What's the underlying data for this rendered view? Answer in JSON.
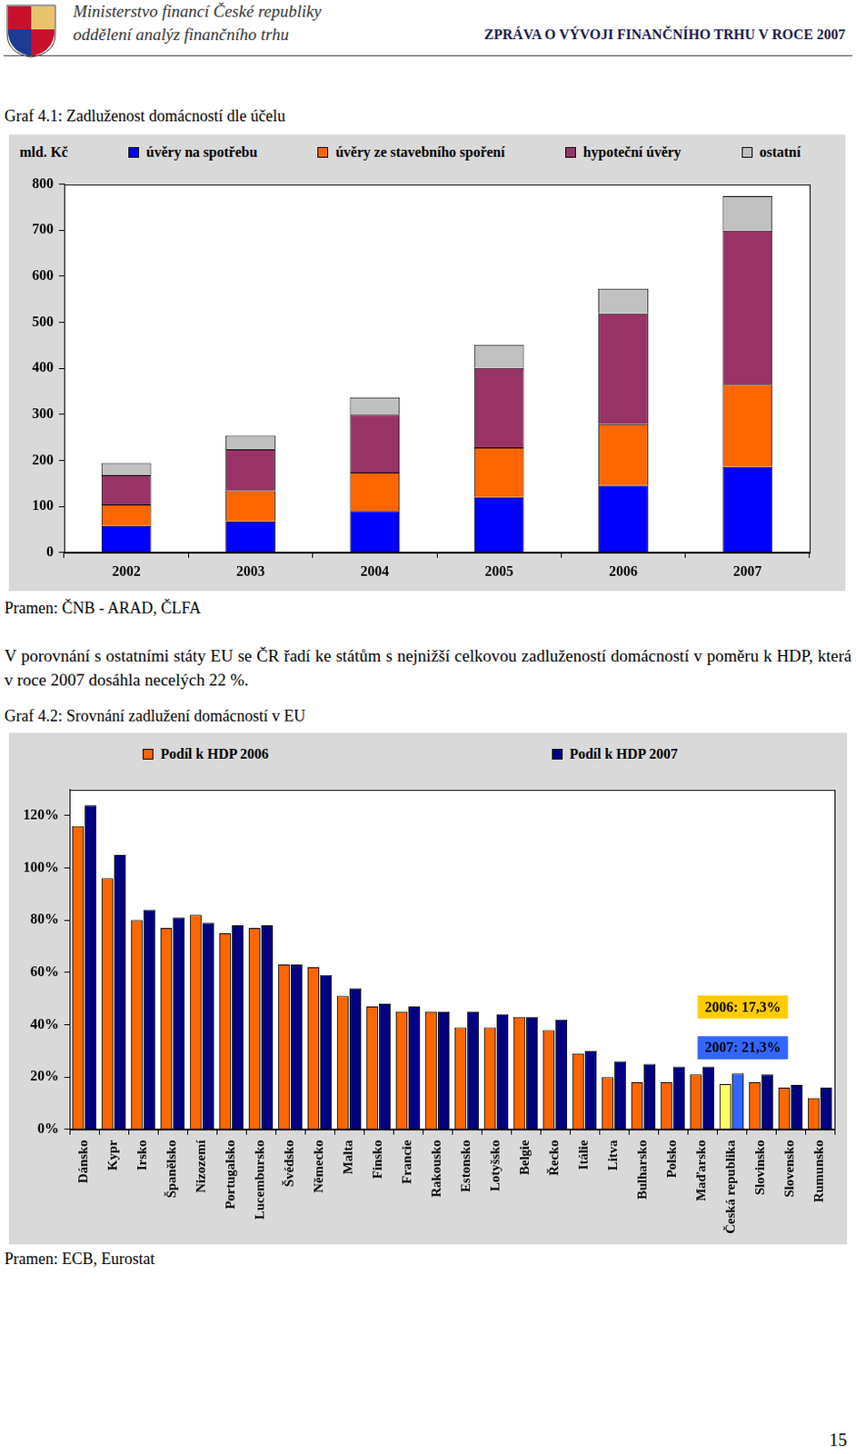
{
  "header": {
    "ministry": "Ministerstvo financí České republiky",
    "department": "oddělení analýz finančního trhu",
    "report": "ZPRÁVA O VÝVOJI FINANČNÍHO TRHU V ROCE 2007"
  },
  "paragraph": "V porovnání s ostatními státy EU se ČR řadí ke státům s nejnižší celkovou zadlužeností domácností v poměru k HDP, která v roce 2007 dosáhla necelých 22 %.",
  "page_number": "15",
  "chart_data": [
    {
      "type": "bar",
      "title": "Graf 4.1: Zadluženost domácností dle účelu",
      "y_label": "mld. Kč",
      "categories": [
        "2002",
        "2003",
        "2004",
        "2005",
        "2006",
        "2007"
      ],
      "series": [
        {
          "name": "úvěry na spotřebu",
          "color": "#0000ff",
          "values": [
            58,
            68,
            90,
            120,
            146,
            186
          ]
        },
        {
          "name": "úvěry ze stavebního spoření",
          "color": "#ff6600",
          "values": [
            46,
            66,
            84,
            108,
            133,
            179
          ]
        },
        {
          "name": "hypoteční úvěry",
          "color": "#993366",
          "values": [
            64,
            90,
            125,
            173,
            240,
            334
          ]
        },
        {
          "name": "ostatní",
          "color": "#c0c0c0",
          "values": [
            26,
            30,
            38,
            50,
            54,
            75
          ]
        }
      ],
      "stacked": true,
      "ylim": [
        0,
        800
      ],
      "yticks": [
        0,
        100,
        200,
        300,
        400,
        500,
        600,
        700,
        800
      ],
      "grid": false,
      "legend": "top",
      "source": "Pramen: ČNB - ARAD, ČLFA"
    },
    {
      "type": "bar",
      "title": "Graf 4.2: Srovnání zadlužení domácností v EU",
      "categories": [
        "Dánsko",
        "Kypr",
        "Irsko",
        "Španělsko",
        "Nizozemí",
        "Portugalsko",
        "Lucembursko",
        "Švédsko",
        "Německo",
        "Malta",
        "Finsko",
        "Francie",
        "Rakousko",
        "Estonsko",
        "Lotyšsko",
        "Belgie",
        "Řecko",
        "Itálie",
        "Litva",
        "Bulharsko",
        "Polsko",
        "Maďarsko",
        "Česká republika",
        "Slovinsko",
        "Slovensko",
        "Rumunsko"
      ],
      "series": [
        {
          "name": "Podíl k HDP 2006",
          "color": "#ff6600",
          "colors": [
            "#ff6600",
            "#ff6600",
            "#ff6600",
            "#ff6600",
            "#ff6600",
            "#ff6600",
            "#ff6600",
            "#ff6600",
            "#ff6600",
            "#ff6600",
            "#ff6600",
            "#ff6600",
            "#ff6600",
            "#ff6600",
            "#ff6600",
            "#ff6600",
            "#ff6600",
            "#ff6600",
            "#ff6600",
            "#ff6600",
            "#ff6600",
            "#ff6600",
            "#ffff66",
            "#ff6600",
            "#ff6600",
            "#ff6600"
          ],
          "values": [
            116,
            96,
            80,
            77,
            82,
            75,
            77,
            63,
            62,
            51,
            47,
            45,
            45,
            39,
            39,
            43,
            38,
            29,
            20,
            18,
            18,
            21,
            17.3,
            18,
            16,
            12
          ]
        },
        {
          "name": "Podíl k HDP 2007",
          "color": "#000080",
          "colors": [
            "#000080",
            "#000080",
            "#000080",
            "#000080",
            "#000080",
            "#000080",
            "#000080",
            "#000080",
            "#000080",
            "#000080",
            "#000080",
            "#000080",
            "#000080",
            "#000080",
            "#000080",
            "#000080",
            "#000080",
            "#000080",
            "#000080",
            "#000080",
            "#000080",
            "#000080",
            "#3366ff",
            "#000080",
            "#000080",
            "#000080"
          ],
          "values": [
            124,
            105,
            84,
            81,
            79,
            78,
            78,
            63,
            59,
            54,
            48,
            47,
            45,
            45,
            44,
            43,
            42,
            30,
            26,
            25,
            24,
            24,
            21.3,
            21,
            17,
            16
          ]
        }
      ],
      "ylim": [
        0,
        130
      ],
      "yticks": [
        {
          "value": 0,
          "label": "0%"
        },
        {
          "value": 20,
          "label": "20%"
        },
        {
          "value": 40,
          "label": "40%"
        },
        {
          "value": 60,
          "label": "60%"
        },
        {
          "value": 80,
          "label": "80%"
        },
        {
          "value": 100,
          "label": "100%"
        },
        {
          "value": 120,
          "label": "120%"
        }
      ],
      "grid": false,
      "legend": "top",
      "annotations": [
        {
          "text": "2006: 17,3%",
          "color": "#ffcc00"
        },
        {
          "text": "2007: 21,3%",
          "color": "#3366ff"
        }
      ],
      "source": "Pramen: ECB, Eurostat"
    }
  ]
}
